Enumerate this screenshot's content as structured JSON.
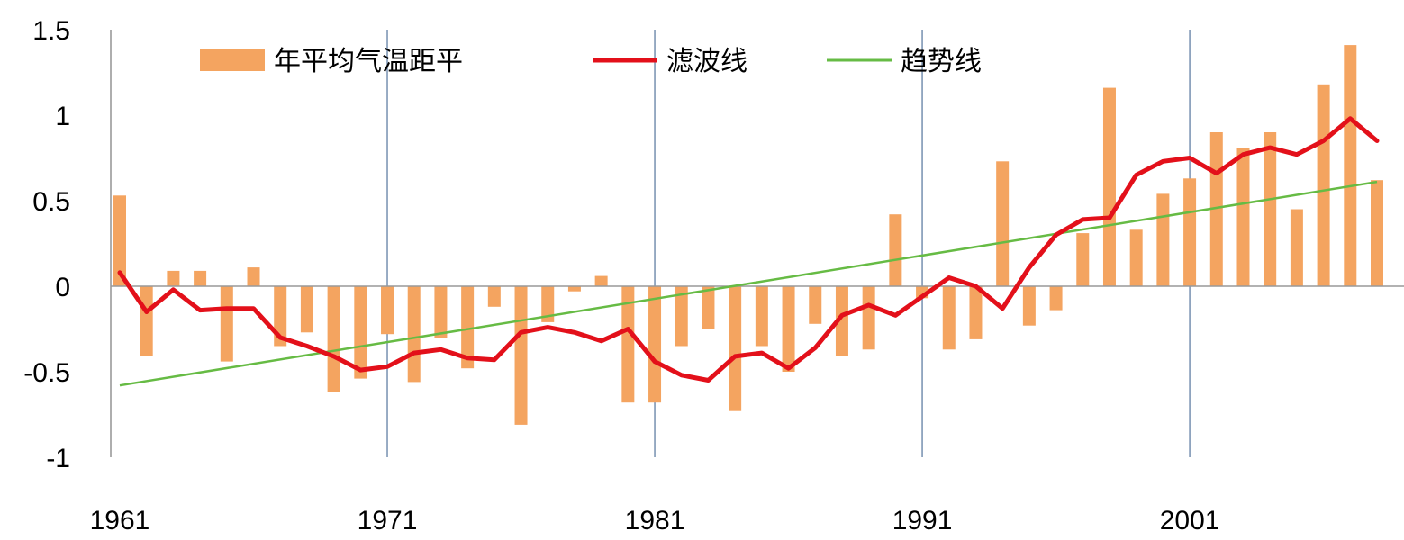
{
  "chart_data": {
    "type": "bar",
    "title": "",
    "xlabel": "",
    "ylabel": "",
    "ylim": [
      -1,
      1.5
    ],
    "yticks": [
      -1,
      -0.5,
      0,
      0.5,
      1,
      1.5
    ],
    "ytick_labels": [
      "-1",
      "-0.5",
      "0",
      "0.5",
      "1",
      "1.5"
    ],
    "xlim": [
      1961,
      2008
    ],
    "xticks": [
      1961,
      1971,
      1981,
      1991,
      2001
    ],
    "xtick_labels": [
      "1961",
      "1971",
      "1981",
      "1991",
      "2001"
    ],
    "vertical_gridlines": [
      1971,
      1981,
      1991,
      2001
    ],
    "legend_position": "top",
    "series": [
      {
        "name": "年平均气温距平",
        "kind": "bar",
        "color": "#f4a460",
        "x": [
          1961,
          1962,
          1963,
          1964,
          1965,
          1966,
          1967,
          1968,
          1969,
          1970,
          1971,
          1972,
          1973,
          1974,
          1975,
          1976,
          1977,
          1978,
          1979,
          1980,
          1981,
          1982,
          1983,
          1984,
          1985,
          1986,
          1987,
          1988,
          1989,
          1990,
          1991,
          1992,
          1993,
          1994,
          1995,
          1996,
          1997,
          1998,
          1999,
          2000,
          2001,
          2002,
          2003,
          2004,
          2005,
          2006,
          2007,
          2008
        ],
        "values": [
          0.53,
          -0.41,
          0.09,
          0.09,
          -0.44,
          0.11,
          -0.35,
          -0.27,
          -0.62,
          -0.54,
          -0.28,
          -0.56,
          -0.3,
          -0.48,
          -0.12,
          -0.81,
          -0.21,
          -0.03,
          0.06,
          -0.68,
          -0.68,
          -0.35,
          -0.25,
          -0.73,
          -0.35,
          -0.5,
          -0.22,
          -0.41,
          -0.37,
          0.42,
          -0.07,
          -0.37,
          -0.31,
          0.73,
          -0.23,
          -0.14,
          0.31,
          1.16,
          0.33,
          0.54,
          0.63,
          0.9,
          0.81,
          0.9,
          0.45,
          1.18,
          1.41,
          0.62
        ]
      },
      {
        "name": "滤波线",
        "kind": "line",
        "color": "#e3101a",
        "x": [
          1961,
          1962,
          1963,
          1964,
          1965,
          1966,
          1967,
          1968,
          1969,
          1970,
          1971,
          1972,
          1973,
          1974,
          1975,
          1976,
          1977,
          1978,
          1979,
          1980,
          1981,
          1982,
          1983,
          1984,
          1985,
          1986,
          1987,
          1988,
          1989,
          1990,
          1991,
          1992,
          1993,
          1994,
          1995,
          1996,
          1997,
          1998,
          1999,
          2000,
          2001,
          2002,
          2003,
          2004,
          2005,
          2006,
          2007,
          2008
        ],
        "values": [
          0.08,
          -0.15,
          -0.02,
          -0.14,
          -0.13,
          -0.13,
          -0.3,
          -0.35,
          -0.41,
          -0.49,
          -0.47,
          -0.39,
          -0.37,
          -0.42,
          -0.43,
          -0.27,
          -0.24,
          -0.27,
          -0.32,
          -0.25,
          -0.44,
          -0.52,
          -0.55,
          -0.41,
          -0.39,
          -0.48,
          -0.36,
          -0.17,
          -0.11,
          -0.17,
          -0.06,
          0.05,
          0.0,
          -0.13,
          0.11,
          0.3,
          0.39,
          0.4,
          0.65,
          0.73,
          0.75,
          0.66,
          0.77,
          0.81,
          0.77,
          0.85,
          0.98,
          0.85
        ]
      },
      {
        "name": "趋势线",
        "kind": "line",
        "color": "#66bb44",
        "x": [
          1961,
          2008
        ],
        "values": [
          -0.58,
          0.61
        ]
      }
    ]
  }
}
